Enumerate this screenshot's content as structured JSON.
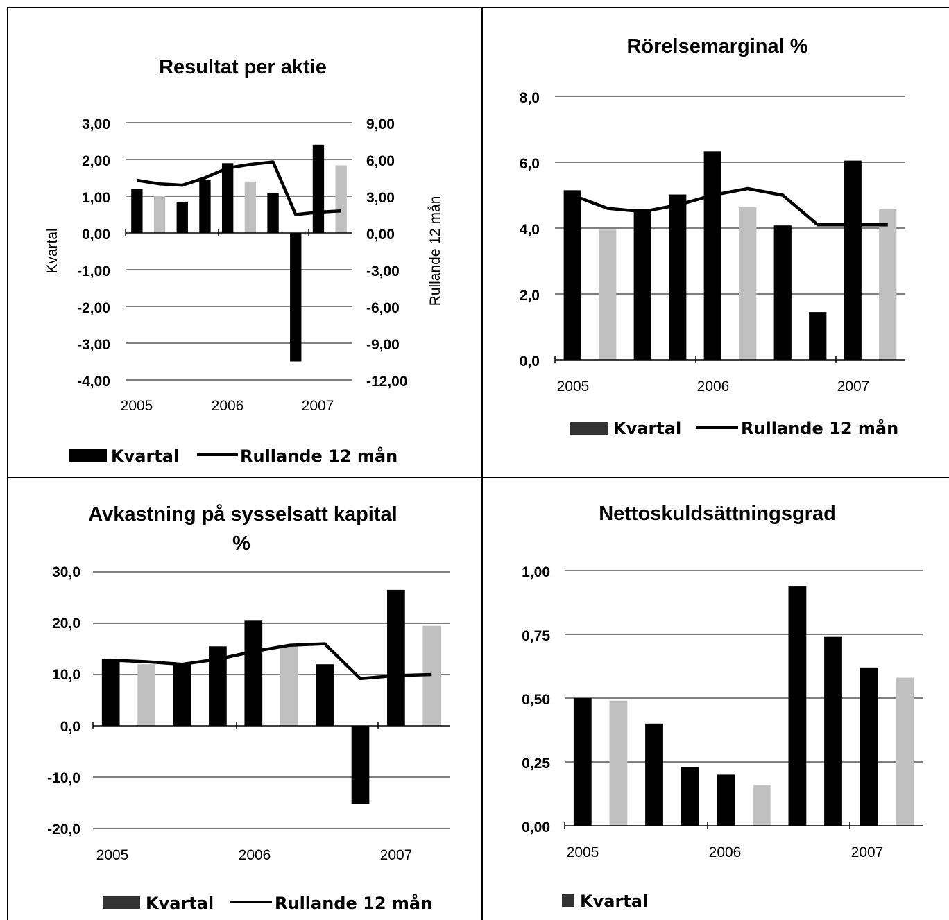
{
  "colors": {
    "primary": "#000000",
    "alternate": "#c0c0c0",
    "grid": "#000000",
    "border": "#000000"
  },
  "chart_data": [
    {
      "type": "bar",
      "title": "Resultat per aktie",
      "ylabel": "Kvartal",
      "y2label": "Rullande 12 mån",
      "ylim": [
        -4,
        3
      ],
      "y2lim": [
        -12,
        9
      ],
      "y_ticks": [
        "3,00",
        "2,00",
        "1,00",
        "0,00",
        "-1,00",
        "-2,00",
        "-3,00",
        "-4,00"
      ],
      "y2_ticks": [
        "9,00",
        "6,00",
        "3,00",
        "0,00",
        "-3,00",
        "-6,00",
        "-9,00",
        "-12,00"
      ],
      "x_ticks": [
        "2005",
        "2006",
        "2007"
      ],
      "legend_position": "bottom",
      "series": [
        {
          "name": "Kvartal",
          "type": "bar",
          "values": [
            1.2,
            1.0,
            0.85,
            1.45,
            1.9,
            1.4,
            1.08,
            -3.5,
            2.4,
            1.84
          ]
        },
        {
          "name": "Rullande 12 mån",
          "type": "line",
          "axis": "right",
          "values": [
            4.3,
            4.0,
            3.9,
            4.5,
            5.3,
            5.6,
            5.8,
            1.5,
            1.7,
            1.8
          ]
        }
      ]
    },
    {
      "type": "bar",
      "title": "Rörelsemarginal %",
      "ylim": [
        0,
        8
      ],
      "y_ticks": [
        "8,0",
        "6,0",
        "4,0",
        "2,0",
        "0,0"
      ],
      "x_ticks": [
        "2005",
        "2006",
        "2007"
      ],
      "legend_position": "bottom",
      "series": [
        {
          "name": "Kvartal",
          "type": "bar",
          "values": [
            5.15,
            3.95,
            4.58,
            5.02,
            6.33,
            4.63,
            4.08,
            1.45,
            6.05,
            4.57
          ]
        },
        {
          "name": "Rullande 12 mån",
          "type": "line",
          "values": [
            5.0,
            4.6,
            4.5,
            4.7,
            5.0,
            5.2,
            5.0,
            4.1,
            4.1,
            4.1
          ]
        }
      ]
    },
    {
      "type": "bar",
      "title": "Avkastning på sysselsatt kapital %",
      "title_lines": [
        "Avkastning på sysselsatt kapital",
        "%"
      ],
      "ylim": [
        -20,
        30
      ],
      "y_ticks": [
        "30,0",
        "20,0",
        "10,0",
        "0,0",
        "-10,0",
        "-20,0"
      ],
      "x_ticks": [
        "2005",
        "2006",
        "2007"
      ],
      "legend_position": "bottom",
      "series": [
        {
          "name": "Kvartal",
          "type": "bar",
          "values": [
            13.0,
            12.0,
            12.0,
            15.5,
            20.5,
            15.5,
            12.0,
            -15.2,
            26.5,
            19.5
          ]
        },
        {
          "name": "Rullande 12 mån",
          "type": "line",
          "values": [
            12.8,
            12.5,
            12.0,
            13.0,
            14.5,
            15.7,
            16.0,
            9.2,
            9.8,
            10.0
          ]
        }
      ]
    },
    {
      "type": "bar",
      "title": "Nettoskuldsättningsgrad",
      "ylim": [
        0,
        1
      ],
      "y_ticks": [
        "1,00",
        "0,75",
        "0,50",
        "0,25",
        "0,00"
      ],
      "x_ticks": [
        "2005",
        "2006",
        "2007"
      ],
      "legend_position": "bottom-left",
      "series": [
        {
          "name": "Kvartal",
          "type": "bar",
          "values": [
            0.5,
            0.49,
            0.4,
            0.23,
            0.2,
            0.16,
            0.94,
            0.74,
            0.62,
            0.58
          ]
        }
      ]
    }
  ]
}
